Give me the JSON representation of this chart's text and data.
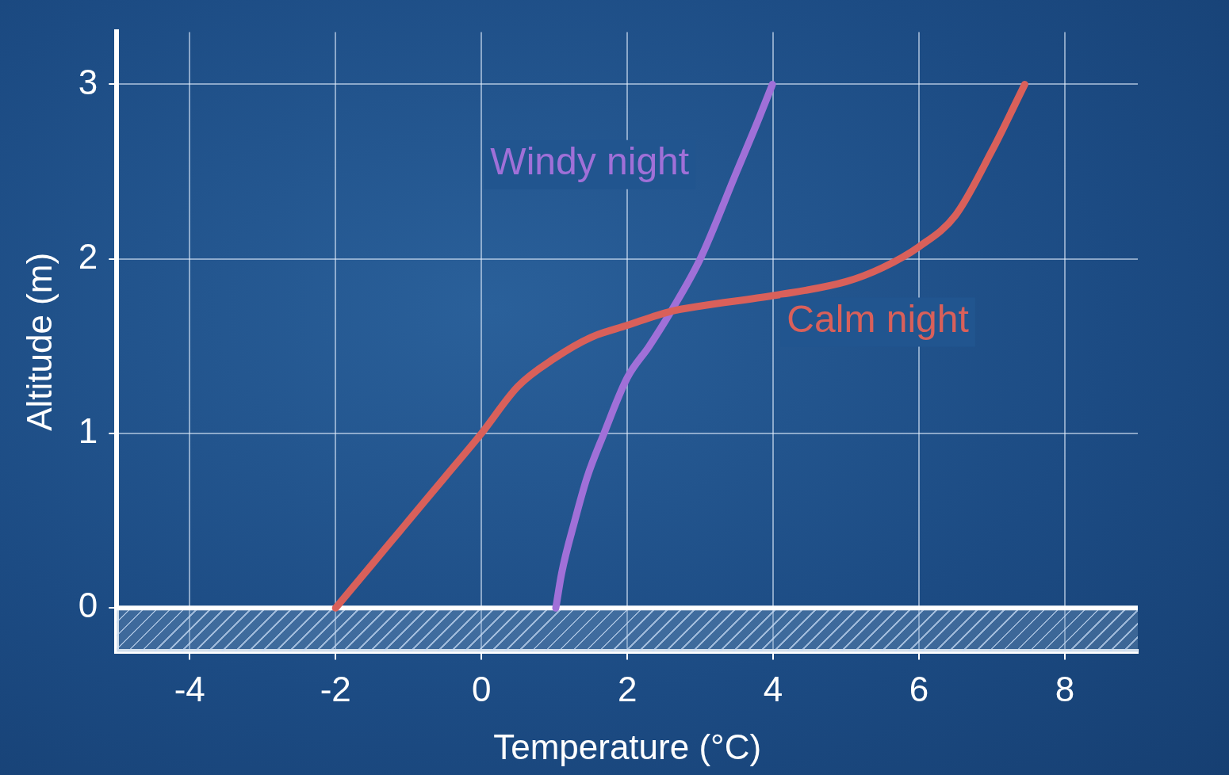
{
  "chart_data": {
    "type": "line",
    "xlabel": "Temperature (°C)",
    "ylabel": "Altitude (m)",
    "xlim": [
      -5,
      9
    ],
    "xticks": [
      -4,
      -2,
      0,
      2,
      4,
      6,
      8
    ],
    "ylim": [
      -0.25,
      3.3
    ],
    "yticks": [
      0,
      1,
      2,
      3
    ],
    "grid": true,
    "legend": false,
    "marker": "none",
    "line_style": "solid",
    "bands": [
      {
        "axis": "y",
        "from": -0.25,
        "to": 0,
        "label": null,
        "color": "#7fa3c9"
      }
    ],
    "series": [
      {
        "name": "Calm night",
        "color": "#d9605a",
        "x": [
          -2,
          -1.5,
          -1,
          -0.5,
          0,
          0.5,
          1,
          1.5,
          2,
          2.6,
          3,
          4,
          5,
          5.5,
          6,
          6.5,
          7,
          7.45
        ],
        "values": [
          0,
          0.25,
          0.5,
          0.75,
          1,
          1.27,
          1.43,
          1.55,
          1.62,
          1.7,
          1.73,
          1.79,
          1.87,
          1.95,
          2.07,
          2.25,
          2.62,
          3
        ]
      },
      {
        "name": "Windy night",
        "color": "#a070d8",
        "x": [
          1.02,
          1.1,
          1.28,
          1.45,
          1.68,
          2,
          2.3,
          2.6,
          3,
          3.5,
          3.8,
          3.99
        ],
        "values": [
          0,
          0.2,
          0.5,
          0.75,
          1,
          1.32,
          1.5,
          1.7,
          2,
          2.5,
          2.8,
          3
        ]
      }
    ]
  }
}
